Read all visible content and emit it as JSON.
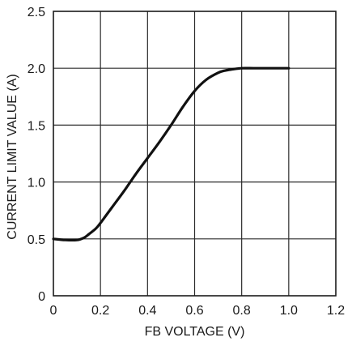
{
  "chart_data": {
    "type": "line",
    "title": "",
    "xlabel": "FB VOLTAGE (V)",
    "ylabel": "CURRENT LIMIT VALUE (A)",
    "xlim": [
      0,
      1.2
    ],
    "ylim": [
      0,
      2.5
    ],
    "x_ticks": [
      0,
      0.2,
      0.4,
      0.6,
      0.8,
      1.0,
      1.2
    ],
    "x_tick_labels": [
      "0",
      "0.2",
      "0.4",
      "0.6",
      "0.8",
      "1.0",
      "1.2"
    ],
    "y_ticks": [
      0,
      0.5,
      1.0,
      1.5,
      2.0,
      2.5
    ],
    "y_tick_labels": [
      "0",
      "0.5",
      "1.0",
      "1.5",
      "2.0",
      "2.5"
    ],
    "grid": true,
    "colors": {
      "line": "#111111",
      "grid": "#2b2b2b",
      "text": "#1a1a1a"
    },
    "series": [
      {
        "x": [
          0.0,
          0.05,
          0.1,
          0.13,
          0.15,
          0.18,
          0.2,
          0.25,
          0.3,
          0.35,
          0.4,
          0.45,
          0.5,
          0.55,
          0.6,
          0.65,
          0.7,
          0.73,
          0.76,
          0.8,
          0.85,
          0.9,
          1.0
        ],
        "y": [
          0.5,
          0.49,
          0.49,
          0.51,
          0.54,
          0.59,
          0.64,
          0.78,
          0.92,
          1.07,
          1.21,
          1.35,
          1.5,
          1.66,
          1.8,
          1.9,
          1.96,
          1.98,
          1.99,
          2.0,
          2.0,
          2.0,
          2.0
        ]
      }
    ]
  }
}
